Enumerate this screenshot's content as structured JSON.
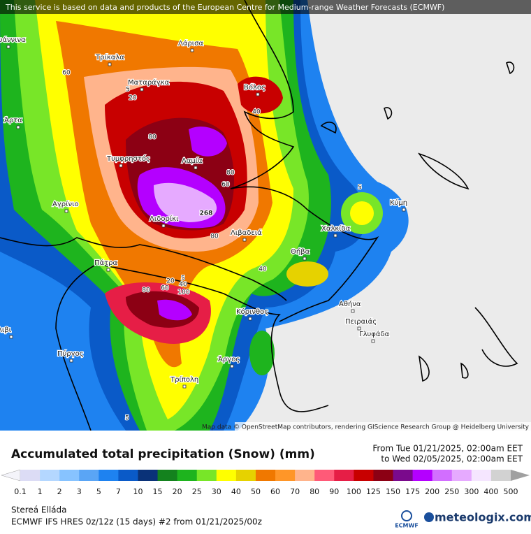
{
  "banner": "This service is based on data and products of the European Centre for Medium-range Weather Forecasts (ECMWF)",
  "map": {
    "cities": [
      "Ιωάννινα",
      "Τρίκαλα",
      "Λάρισα",
      "Ματαράγκα",
      "Βόλος",
      "Άρτα",
      "Τυμφρηστός",
      "Λαμία",
      "Αγρίνιο",
      "Λιδορίκι",
      "Λιβαδειά",
      "Κύμη",
      "Χαλκίδα",
      "Θήβα",
      "Πάτρα",
      "Κόρινθος",
      "Αθήνα",
      "Πειραιάς",
      "Γλυφάδα",
      "Πύργος",
      "Άργος",
      "Τρίπολη",
      "Λιβι"
    ],
    "contour_labels": [
      "60",
      "5",
      "20",
      "80",
      "40",
      "80",
      "60",
      "5",
      "268",
      "80",
      "40",
      "5",
      "20",
      "40",
      "60",
      "80",
      "100",
      "5"
    ],
    "attribution": "Map data © OpenStreetMap contributors, rendering GIScience Research Group @ Heidelberg University"
  },
  "legend": {
    "title": "Accumulated total precipitation (Snow) (mm)",
    "from": "From Tue 01/21/2025, 02:00am EET",
    "to": "to Wed 02/05/2025, 02:00am EET",
    "levels": [
      0.1,
      1,
      2,
      3,
      5,
      7,
      10,
      15,
      20,
      25,
      30,
      40,
      50,
      60,
      70,
      80,
      90,
      100,
      125,
      150,
      175,
      200,
      250,
      300,
      400,
      500
    ],
    "colors": [
      "#f4f4fa",
      "#dcdcf5",
      "#b4d7ff",
      "#87c3ff",
      "#5aa5f5",
      "#1e82f0",
      "#0a5ac8",
      "#0a3278",
      "#14821e",
      "#1eb41e",
      "#78e628",
      "#ffff00",
      "#e6d200",
      "#f07800",
      "#ff9628",
      "#ffb48c",
      "#ff5a78",
      "#e61e46",
      "#c80000",
      "#8c0014",
      "#7a0a8c",
      "#b400ff",
      "#d26eff",
      "#e6aaff",
      "#f5e6ff",
      "#d2d2d2",
      "#a0a0a0"
    ]
  },
  "footer": {
    "region": "Stereá Elláda",
    "model": "ECMWF IFS HRES 0z/12z (15 days) #2 from  01/21/2025/00z",
    "ecmwf": "ECMWF",
    "brand": "meteologix.com"
  }
}
